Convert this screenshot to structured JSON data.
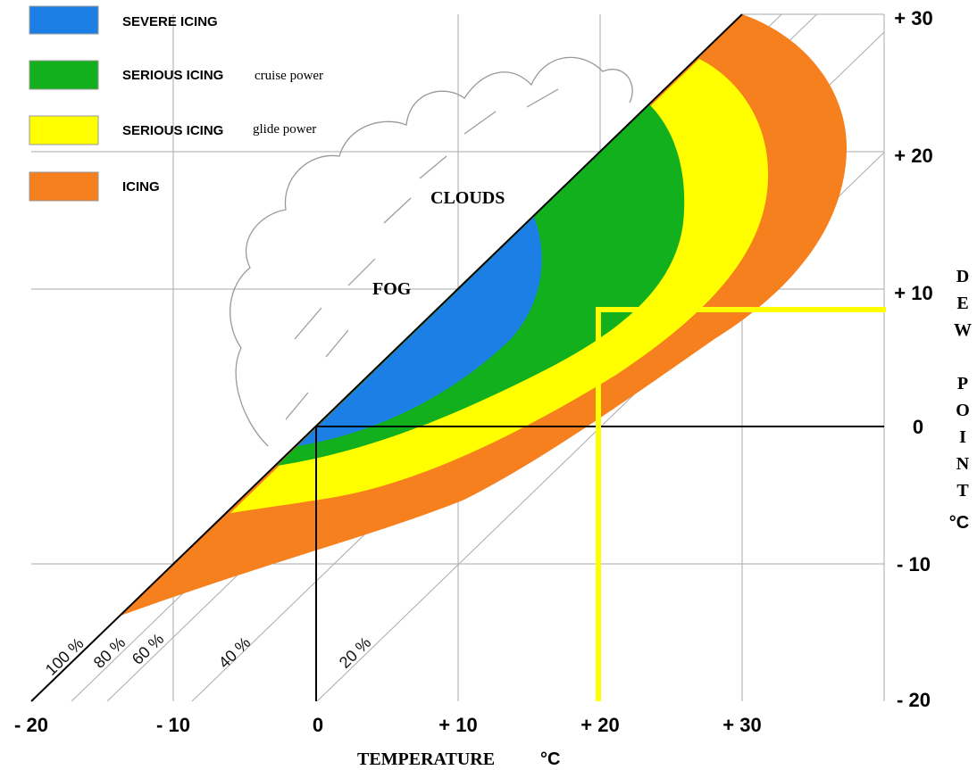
{
  "legend": [
    {
      "label": "SEVERE ICING"
    },
    {
      "label": "SERIOUS ICING",
      "note": "cruise power"
    },
    {
      "label": "SERIOUS ICING",
      "note": "glide power"
    },
    {
      "label": "ICING"
    }
  ],
  "regions": {
    "clouds": "CLOUDS",
    "fog": "FOG"
  },
  "humidity_labels": [
    "100 %",
    "80 %",
    "60 %",
    "40 %",
    "20 %"
  ],
  "x_axis": {
    "title": "TEMPERATURE",
    "unit": "°C",
    "ticks": [
      "- 20",
      "- 10",
      "0",
      "+ 10",
      "+ 20",
      "+ 30"
    ]
  },
  "y_axis": {
    "title": "DEW POINT",
    "unit": "°C",
    "ticks": [
      "+ 30",
      "+ 20",
      "+ 10",
      "0",
      "- 10",
      "- 20"
    ]
  }
}
